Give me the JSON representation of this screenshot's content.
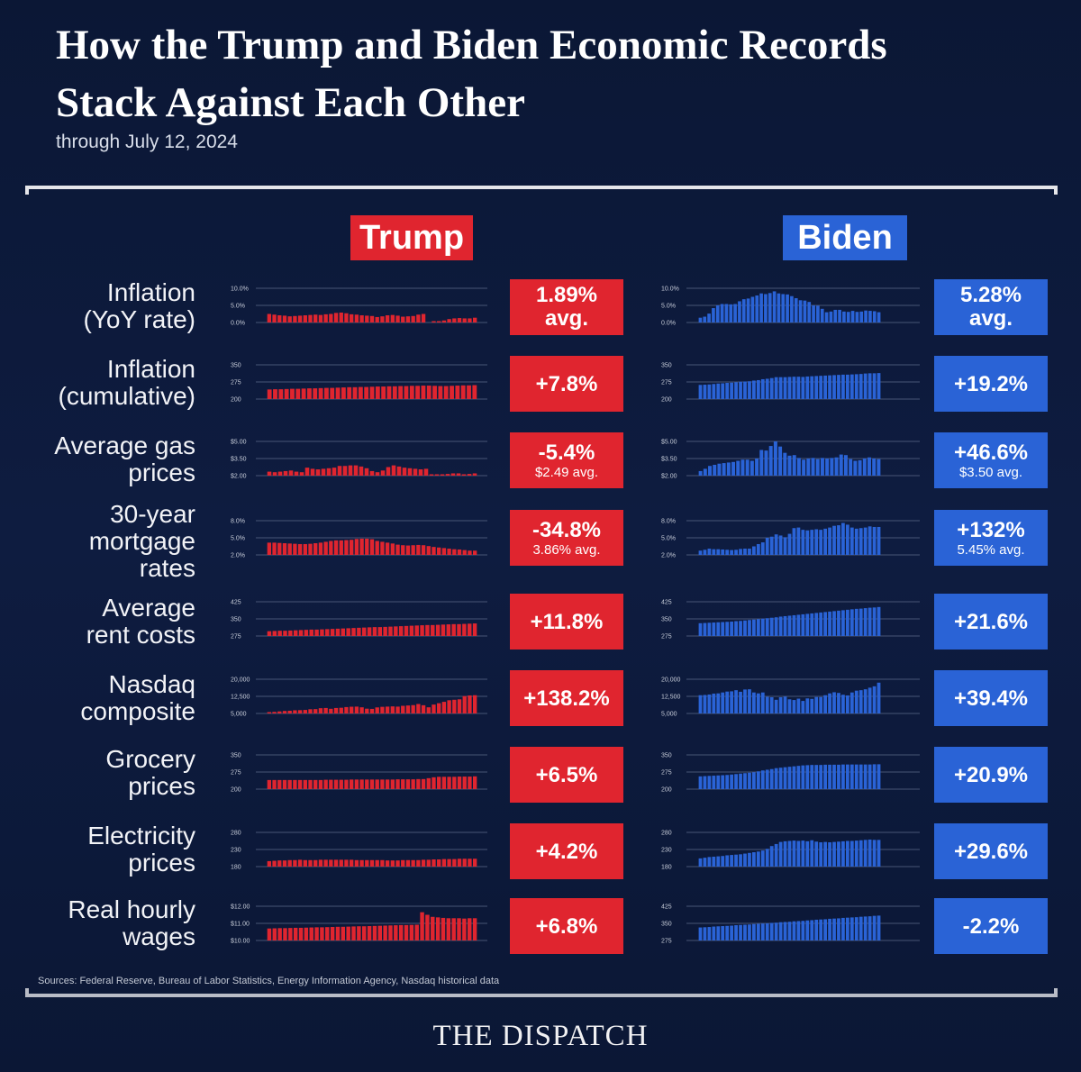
{
  "header": {
    "title": "How the Trump and Biden Economic Records Stack Against Each Other",
    "subtitle": "through July 12, 2024"
  },
  "columns": {
    "trump": "Trump",
    "biden": "Biden"
  },
  "colors": {
    "trump": "#e0252f",
    "biden": "#2a63d6",
    "background": "#0d1a3a"
  },
  "rows": [
    {
      "label": "Inflation\n(YoY rate)",
      "trump_value": "1.89%",
      "trump_sub": "avg.",
      "biden_value": "5.28%",
      "biden_sub": "avg."
    },
    {
      "label": "Inflation\n(cumulative)",
      "trump_value": "+7.8%",
      "trump_sub": "",
      "biden_value": "+19.2%",
      "biden_sub": ""
    },
    {
      "label": "Average gas\nprices",
      "trump_value": "-5.4%",
      "trump_sub": "$2.49 avg.",
      "biden_value": "+46.6%",
      "biden_sub": "$3.50 avg."
    },
    {
      "label": "30-year\nmortgage\nrates",
      "trump_value": "-34.8%",
      "trump_sub": "3.86% avg.",
      "biden_value": "+132%",
      "biden_sub": "5.45% avg."
    },
    {
      "label": "Average\nrent costs",
      "trump_value": "+11.8%",
      "trump_sub": "",
      "biden_value": "+21.6%",
      "biden_sub": ""
    },
    {
      "label": "Nasdaq\ncomposite",
      "trump_value": "+138.2%",
      "trump_sub": "",
      "biden_value": "+39.4%",
      "biden_sub": ""
    },
    {
      "label": "Grocery\nprices",
      "trump_value": "+6.5%",
      "trump_sub": "",
      "biden_value": "+20.9%",
      "biden_sub": ""
    },
    {
      "label": "Electricity\nprices",
      "trump_value": "+4.2%",
      "trump_sub": "",
      "biden_value": "+29.6%",
      "biden_sub": ""
    },
    {
      "label": "Real hourly\nwages",
      "trump_value": "+6.8%",
      "trump_sub": "",
      "biden_value": "-2.2%",
      "biden_sub": ""
    }
  ],
  "chart_data": [
    {
      "type": "bar",
      "panel": "trump",
      "metric": "Inflation (YoY rate)",
      "ticks": [
        "10.0%",
        "5.0%",
        "0.0%"
      ],
      "ylim": [
        0,
        10
      ],
      "values": [
        2.5,
        2.3,
        2.1,
        2.0,
        1.8,
        1.9,
        2.0,
        2.1,
        2.2,
        2.3,
        2.2,
        2.4,
        2.5,
        2.8,
        2.9,
        2.7,
        2.4,
        2.3,
        2.1,
        2.0,
        1.9,
        1.6,
        1.8,
        2.1,
        2.2,
        2.0,
        1.7,
        1.8,
        1.9,
        2.3,
        2.5,
        0,
        0.3,
        0.1,
        0.6,
        1.0,
        1.2,
        1.3,
        1.2,
        1.2,
        1.4
      ]
    },
    {
      "type": "bar",
      "panel": "biden",
      "metric": "Inflation (YoY rate)",
      "ticks": [
        "10.0%",
        "5.0%",
        "0.0%"
      ],
      "ylim": [
        0,
        10
      ],
      "values": [
        1.4,
        1.7,
        2.6,
        4.2,
        5.0,
        5.4,
        5.4,
        5.3,
        5.4,
        6.2,
        6.8,
        7.0,
        7.5,
        7.9,
        8.5,
        8.3,
        8.6,
        9.1,
        8.5,
        8.3,
        8.2,
        7.7,
        7.1,
        6.5,
        6.4,
        6.0,
        5.0,
        4.9,
        4.0,
        3.0,
        3.2,
        3.7,
        3.7,
        3.2,
        3.1,
        3.4,
        3.1,
        3.2,
        3.5,
        3.4,
        3.3,
        3.0
      ]
    },
    {
      "type": "bar",
      "panel": "trump",
      "metric": "Inflation (cumulative)",
      "ticks": [
        "350",
        "275",
        "200"
      ],
      "ylim": [
        200,
        350
      ],
      "values": [
        242,
        243,
        243,
        244,
        245,
        245,
        246,
        247,
        247,
        248,
        249,
        249,
        250,
        251,
        252,
        252,
        253,
        253,
        254,
        255,
        255,
        256,
        256,
        257,
        257,
        258,
        258,
        259,
        259,
        258,
        257,
        257,
        258,
        259,
        260,
        260,
        261
      ]
    },
    {
      "type": "bar",
      "panel": "biden",
      "metric": "Inflation (cumulative)",
      "ticks": [
        "350",
        "275",
        "200"
      ],
      "ylim": [
        200,
        350
      ],
      "values": [
        262,
        263,
        264,
        266,
        268,
        269,
        271,
        272,
        274,
        276,
        277,
        278,
        281,
        283,
        287,
        289,
        292,
        296,
        296,
        296,
        297,
        298,
        298,
        297,
        299,
        300,
        301,
        302,
        303,
        304,
        305,
        306,
        307,
        307,
        308,
        309,
        310,
        312,
        313,
        313,
        314
      ]
    },
    {
      "type": "bar",
      "panel": "trump",
      "metric": "Average gas prices",
      "ticks": [
        "$5.00",
        "$3.50",
        "$2.00"
      ],
      "ylim": [
        2.0,
        5.0
      ],
      "values": [
        2.35,
        2.3,
        2.35,
        2.4,
        2.45,
        2.35,
        2.3,
        2.7,
        2.6,
        2.55,
        2.6,
        2.65,
        2.7,
        2.85,
        2.85,
        2.9,
        2.9,
        2.8,
        2.65,
        2.4,
        2.3,
        2.45,
        2.75,
        2.9,
        2.8,
        2.7,
        2.65,
        2.6,
        2.55,
        2.6,
        2.1,
        2.0,
        1.9,
        2.15,
        2.2,
        2.2,
        2.1,
        2.15,
        2.2
      ]
    },
    {
      "type": "bar",
      "panel": "biden",
      "metric": "Average gas prices",
      "ticks": [
        "$5.00",
        "$3.50",
        "$2.00"
      ],
      "ylim": [
        2.0,
        5.0
      ],
      "values": [
        2.4,
        2.6,
        2.85,
        2.95,
        3.05,
        3.1,
        3.15,
        3.2,
        3.3,
        3.4,
        3.4,
        3.3,
        3.5,
        4.25,
        4.2,
        4.6,
        5.0,
        4.55,
        4.0,
        3.75,
        3.8,
        3.55,
        3.4,
        3.5,
        3.55,
        3.45,
        3.55,
        3.5,
        3.55,
        3.6,
        3.85,
        3.8,
        3.45,
        3.3,
        3.35,
        3.5,
        3.6,
        3.5,
        3.45
      ]
    },
    {
      "type": "bar",
      "panel": "trump",
      "metric": "30-year mortgage rates",
      "ticks": [
        "8.0%",
        "5.0%",
        "2.0%"
      ],
      "ylim": [
        2,
        8
      ],
      "values": [
        4.15,
        4.15,
        4.1,
        4.05,
        4.0,
        3.95,
        3.9,
        3.9,
        3.95,
        4.05,
        4.15,
        4.3,
        4.45,
        4.55,
        4.55,
        4.6,
        4.65,
        4.8,
        4.85,
        4.85,
        4.75,
        4.45,
        4.3,
        4.15,
        4.0,
        3.8,
        3.7,
        3.65,
        3.7,
        3.75,
        3.7,
        3.55,
        3.4,
        3.3,
        3.2,
        3.1,
        3.0,
        2.95,
        2.85,
        2.75,
        2.75
      ]
    },
    {
      "type": "bar",
      "panel": "biden",
      "metric": "30-year mortgage rates",
      "ticks": [
        "8.0%",
        "5.0%",
        "2.0%"
      ],
      "ylim": [
        2,
        8
      ],
      "values": [
        2.75,
        2.9,
        3.1,
        3.0,
        3.0,
        2.95,
        2.9,
        2.85,
        2.9,
        3.05,
        3.1,
        3.1,
        3.5,
        3.9,
        4.2,
        5.0,
        5.2,
        5.6,
        5.4,
        5.1,
        5.7,
        6.7,
        6.8,
        6.4,
        6.3,
        6.4,
        6.5,
        6.4,
        6.6,
        6.8,
        7.1,
        7.2,
        7.6,
        7.3,
        6.8,
        6.6,
        6.7,
        6.8,
        7.0,
        6.9,
        6.9
      ]
    },
    {
      "type": "bar",
      "panel": "trump",
      "metric": "Average rent costs",
      "ticks": [
        "425",
        "350",
        "275"
      ],
      "ylim": [
        275,
        425
      ],
      "values": [
        296,
        297,
        298,
        298,
        299,
        300,
        301,
        302,
        303,
        303,
        304,
        305,
        306,
        307,
        308,
        309,
        310,
        311,
        312,
        313,
        314,
        314,
        315,
        316,
        317,
        318,
        319,
        320,
        321,
        322,
        323,
        323,
        324,
        325,
        326,
        327,
        327,
        328,
        329,
        330
      ]
    },
    {
      "type": "bar",
      "panel": "biden",
      "metric": "Average rent costs",
      "ticks": [
        "425",
        "350",
        "275"
      ],
      "ylim": [
        275,
        425
      ],
      "values": [
        331,
        332,
        333,
        334,
        335,
        336,
        337,
        338,
        340,
        341,
        343,
        345,
        347,
        349,
        351,
        353,
        355,
        357,
        360,
        362,
        364,
        366,
        368,
        370,
        372,
        374,
        376,
        378,
        380,
        382,
        384,
        386,
        388,
        390,
        392,
        394,
        395,
        397,
        399,
        400,
        402
      ]
    },
    {
      "type": "bar",
      "panel": "trump",
      "metric": "Nasdaq composite",
      "ticks": [
        "20,000",
        "12,500",
        "5,000"
      ],
      "ylim": [
        5000,
        20000
      ],
      "values": [
        5500,
        5700,
        5900,
        6100,
        6200,
        6400,
        6450,
        6550,
        6850,
        6900,
        7300,
        7400,
        7050,
        7400,
        7500,
        7800,
        7950,
        8000,
        7700,
        7100,
        7000,
        7650,
        7900,
        8000,
        8100,
        8000,
        8350,
        8500,
        8650,
        9150,
        8600,
        7700,
        8900,
        9500,
        10100,
        10800,
        11000,
        11200,
        12600,
        12900,
        13000
      ]
    },
    {
      "type": "bar",
      "panel": "biden",
      "metric": "Nasdaq composite",
      "ticks": [
        "20,000",
        "12,500",
        "5,000"
      ],
      "ylim": [
        5000,
        20000
      ],
      "values": [
        13000,
        13100,
        13300,
        13700,
        13800,
        14200,
        14600,
        14700,
        15200,
        14500,
        15500,
        15600,
        14200,
        13800,
        14200,
        12300,
        12100,
        11000,
        12100,
        12400,
        11200,
        10900,
        11500,
        10500,
        11600,
        11400,
        12200,
        12200,
        13000,
        13800,
        14300,
        14000,
        13200,
        12900,
        14200,
        15000,
        15200,
        15600,
        16300,
        16900,
        18500
      ]
    },
    {
      "type": "bar",
      "panel": "trump",
      "metric": "Grocery prices",
      "ticks": [
        "350",
        "275",
        "200"
      ],
      "ylim": [
        200,
        350
      ],
      "values": [
        240,
        240,
        240,
        240,
        240,
        240,
        240,
        240,
        240,
        240,
        240,
        241,
        241,
        241,
        241,
        241,
        242,
        242,
        242,
        242,
        242,
        242,
        242,
        242,
        242,
        243,
        243,
        243,
        243,
        244,
        244,
        248,
        252,
        254,
        254,
        254,
        254,
        255,
        255,
        255,
        256
      ]
    },
    {
      "type": "bar",
      "panel": "biden",
      "metric": "Grocery prices",
      "ticks": [
        "350",
        "275",
        "200"
      ],
      "ylim": [
        200,
        350
      ],
      "values": [
        256,
        257,
        258,
        259,
        260,
        261,
        262,
        264,
        266,
        268,
        270,
        272,
        274,
        278,
        282,
        285,
        288,
        292,
        294,
        296,
        298,
        300,
        302,
        304,
        305,
        306,
        306,
        306,
        307,
        307,
        307,
        307,
        308,
        308,
        308,
        308,
        308,
        308,
        308,
        309,
        309
      ]
    },
    {
      "type": "bar",
      "panel": "trump",
      "metric": "Electricity prices",
      "ticks": [
        "280",
        "230",
        "180"
      ],
      "ylim": [
        180,
        280
      ],
      "values": [
        196,
        197,
        198,
        198,
        199,
        199,
        200,
        199,
        199,
        199,
        200,
        200,
        200,
        200,
        200,
        200,
        200,
        199,
        199,
        199,
        199,
        199,
        199,
        198,
        198,
        198,
        199,
        199,
        199,
        199,
        200,
        200,
        201,
        201,
        202,
        202,
        202,
        203,
        203,
        203,
        203
      ]
    },
    {
      "type": "bar",
      "panel": "biden",
      "metric": "Electricity prices",
      "ticks": [
        "280",
        "230",
        "180"
      ],
      "ylim": [
        180,
        280
      ],
      "values": [
        204,
        206,
        208,
        209,
        210,
        211,
        213,
        214,
        215,
        216,
        218,
        220,
        222,
        224,
        227,
        232,
        240,
        246,
        252,
        254,
        255,
        256,
        255,
        256,
        254,
        257,
        253,
        251,
        252,
        251,
        252,
        253,
        254,
        255,
        255,
        256,
        257,
        258,
        259,
        258,
        258
      ]
    },
    {
      "type": "bar",
      "panel": "trump",
      "metric": "Real hourly wages",
      "ticks": [
        "$12.00",
        "$11.00",
        "$10.00"
      ],
      "ylim": [
        10,
        12
      ],
      "values": [
        10.7,
        10.71,
        10.72,
        10.72,
        10.73,
        10.74,
        10.74,
        10.75,
        10.76,
        10.77,
        10.77,
        10.78,
        10.79,
        10.8,
        10.8,
        10.81,
        10.82,
        10.83,
        10.83,
        10.84,
        10.85,
        10.86,
        10.87,
        10.88,
        10.89,
        10.9,
        10.9,
        10.91,
        10.92,
        11.65,
        11.5,
        11.38,
        11.35,
        11.32,
        11.3,
        11.3,
        11.3,
        11.28,
        11.3,
        11.3
      ]
    },
    {
      "type": "bar",
      "panel": "biden",
      "metric": "Real hourly wages",
      "ticks": [
        "425",
        "350",
        "275"
      ],
      "ylim": [
        275,
        425
      ],
      "values": [
        332,
        333,
        334,
        336,
        337,
        338,
        339,
        340,
        342,
        343,
        344,
        345,
        347,
        348,
        349,
        350,
        352,
        353,
        355,
        356,
        357,
        359,
        360,
        361,
        363,
        364,
        366,
        367,
        368,
        370,
        371,
        372,
        374,
        375,
        376,
        377,
        379,
        380,
        381,
        383,
        384
      ]
    }
  ],
  "footer": {
    "sources": "Sources: Federal Reserve, Bureau of Labor Statistics, Energy Information Agency, Nasdaq historical data",
    "brand": "THE DISPATCH"
  }
}
